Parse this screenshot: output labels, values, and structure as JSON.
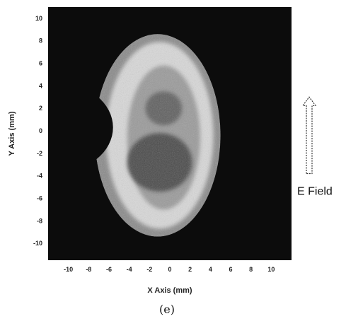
{
  "chart_data": {
    "type": "heatmap",
    "xlabel": "X Axis (mm)",
    "ylabel": "Y Axis (mm)",
    "xlim": [
      -12,
      12
    ],
    "ylim": [
      -11.5,
      11
    ],
    "xticks": [
      -10,
      -8,
      -6,
      -4,
      -2,
      0,
      2,
      4,
      6,
      8,
      10
    ],
    "yticks": [
      10,
      8,
      6,
      4,
      2,
      0,
      -2,
      -4,
      -6,
      -8,
      -10
    ],
    "grid": false,
    "background_color": "#0c0c0c",
    "annotation": {
      "text": "E Field",
      "arrow_direction": "up",
      "arrow_from_y": -3.8,
      "arrow_to_y": 3.0
    },
    "caption": "(e)"
  }
}
